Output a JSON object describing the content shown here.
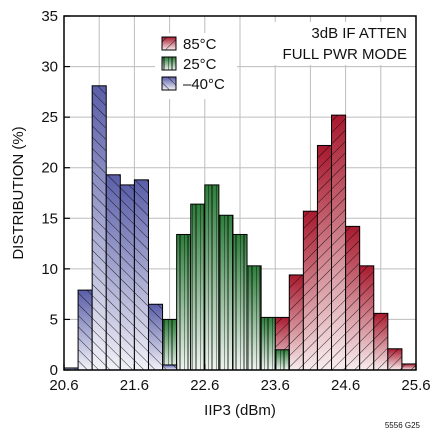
{
  "chart_data": {
    "type": "bar",
    "title": "",
    "annotation_lines": [
      "3dB IF ATTEN",
      "FULL PWR MODE"
    ],
    "xlabel": "IIP3 (dBm)",
    "ylabel": "DISTRIBUTION (%)",
    "xlim": [
      20.6,
      25.6
    ],
    "ylim": [
      0,
      35
    ],
    "x_ticks": [
      "20.6",
      "21.6",
      "22.6",
      "23.6",
      "24.6",
      "25.6"
    ],
    "y_ticks": [
      "0",
      "5",
      "10",
      "15",
      "20",
      "25",
      "30",
      "35"
    ],
    "bin_width": 0.2,
    "grid": true,
    "legend_position": "top-center",
    "footnote": "5556 G25",
    "series": [
      {
        "name": "85°C",
        "color": "#a8192e",
        "bins": [
          {
            "x": 23.6,
            "value": 5.2
          },
          {
            "x": 23.8,
            "value": 9.4
          },
          {
            "x": 24.0,
            "value": 15.7
          },
          {
            "x": 24.2,
            "value": 22.2
          },
          {
            "x": 24.4,
            "value": 25.2
          },
          {
            "x": 24.6,
            "value": 14.2
          },
          {
            "x": 24.8,
            "value": 10.3
          },
          {
            "x": 25.0,
            "value": 5.6
          },
          {
            "x": 25.2,
            "value": 2.1
          },
          {
            "x": 25.4,
            "value": 0.6
          }
        ]
      },
      {
        "name": "25°C",
        "color": "#2e7d3b",
        "bins": [
          {
            "x": 22.0,
            "value": 5.0
          },
          {
            "x": 22.2,
            "value": 13.4
          },
          {
            "x": 22.4,
            "value": 16.4
          },
          {
            "x": 22.6,
            "value": 18.3
          },
          {
            "x": 22.8,
            "value": 15.3
          },
          {
            "x": 23.0,
            "value": 13.4
          },
          {
            "x": 23.2,
            "value": 10.3
          },
          {
            "x": 23.4,
            "value": 5.2
          },
          {
            "x": 23.6,
            "value": 2.0
          }
        ]
      },
      {
        "name": "–40°C",
        "color": "#5a5ea8",
        "bins": [
          {
            "x": 20.6,
            "value": 0.2
          },
          {
            "x": 20.8,
            "value": 7.9
          },
          {
            "x": 21.0,
            "value": 28.1
          },
          {
            "x": 21.2,
            "value": 19.3
          },
          {
            "x": 21.4,
            "value": 18.3
          },
          {
            "x": 21.6,
            "value": 18.8
          },
          {
            "x": 21.8,
            "value": 6.5
          },
          {
            "x": 22.0,
            "value": 0.5
          }
        ]
      }
    ]
  }
}
